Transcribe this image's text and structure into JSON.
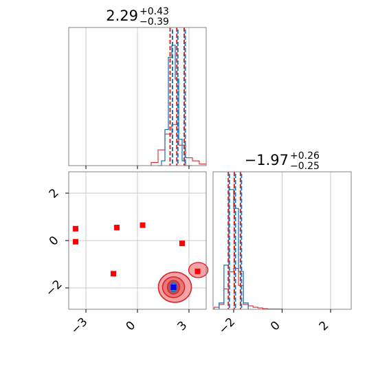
{
  "chart_data": {
    "type": "corner",
    "panels": [
      {
        "id": "diag-1",
        "kind": "histogram",
        "title": {
          "value": "2.29",
          "upper": "+0.43",
          "lower": "−0.39"
        },
        "xlim": [
          -4,
          4
        ],
        "grid": true,
        "blue_series": {
          "bins": [
            1.2,
            1.4,
            1.6,
            1.8,
            2.0,
            2.2,
            2.4,
            2.6,
            2.8,
            3.0,
            3.2
          ],
          "counts": [
            0,
            0.04,
            0.3,
            0.9,
            1.0,
            0.72,
            0.22,
            0.04,
            0,
            0
          ]
        },
        "red_series": {
          "bins": [
            0.8,
            1.2,
            1.6,
            2.0,
            2.4,
            2.8,
            3.2,
            3.6,
            4.0
          ],
          "counts": [
            0.02,
            0.1,
            0.2,
            0.26,
            0.13,
            0.05,
            0.03,
            0.01
          ]
        },
        "blue_quantiles": [
          1.98,
          2.29,
          2.72
        ],
        "red_quantiles": [
          1.9,
          2.29,
          2.72
        ]
      },
      {
        "id": "diag-2",
        "kind": "histogram",
        "title": {
          "value": "−1.97",
          "upper": "+0.26",
          "lower": "−0.25"
        },
        "xlim": [
          -2.85,
          2.85
        ],
        "xticks": [
          "-2",
          "0",
          "2"
        ],
        "grid": true,
        "blue_series": {
          "bins": [
            -2.6,
            -2.4,
            -2.2,
            -2.0,
            -1.8,
            -1.6,
            -1.4
          ],
          "counts": [
            0.05,
            0.35,
            0.95,
            0.8,
            0.3,
            0.05
          ]
        },
        "red_series": {
          "bins": [
            -2.8,
            -2.6,
            -2.4,
            -2.2,
            -2.0,
            -1.8,
            -1.6,
            -1.4,
            -1.2,
            -1.0,
            -0.8,
            -0.6,
            0.0
          ],
          "counts": [
            0.03,
            0.07,
            0.3,
            0.55,
            0.6,
            0.35,
            0.07,
            0.05,
            0.03,
            0.02,
            0.01,
            0.005
          ]
        },
        "blue_quantiles": [
          -2.22,
          -1.97,
          -1.72
        ],
        "red_quantiles": [
          -2.22,
          -1.97,
          -1.72
        ]
      },
      {
        "id": "joint",
        "kind": "scatter-contour",
        "xlim": [
          -4,
          4
        ],
        "ylim": [
          -2.9,
          2.9
        ],
        "xticks": [
          "-3",
          "0",
          "3"
        ],
        "yticks": [
          "2",
          "0",
          "-2"
        ],
        "grid": true,
        "red_square_points": [
          {
            "x": -3.6,
            "y": 0.5
          },
          {
            "x": -3.6,
            "y": -0.05
          },
          {
            "x": -1.2,
            "y": 0.55
          },
          {
            "x": 0.3,
            "y": 0.65
          },
          {
            "x": 2.6,
            "y": -0.12
          },
          {
            "x": -1.4,
            "y": -1.4
          },
          {
            "x": 3.5,
            "y": -1.3
          }
        ],
        "blue_center": {
          "x": 2.1,
          "y": -1.97
        }
      }
    ]
  },
  "colors": {
    "red": "#d62728",
    "blue": "#1f77b4",
    "pure_red": "#ff0000",
    "pure_blue": "#0000ff",
    "light_red": "#f5a3a6"
  }
}
